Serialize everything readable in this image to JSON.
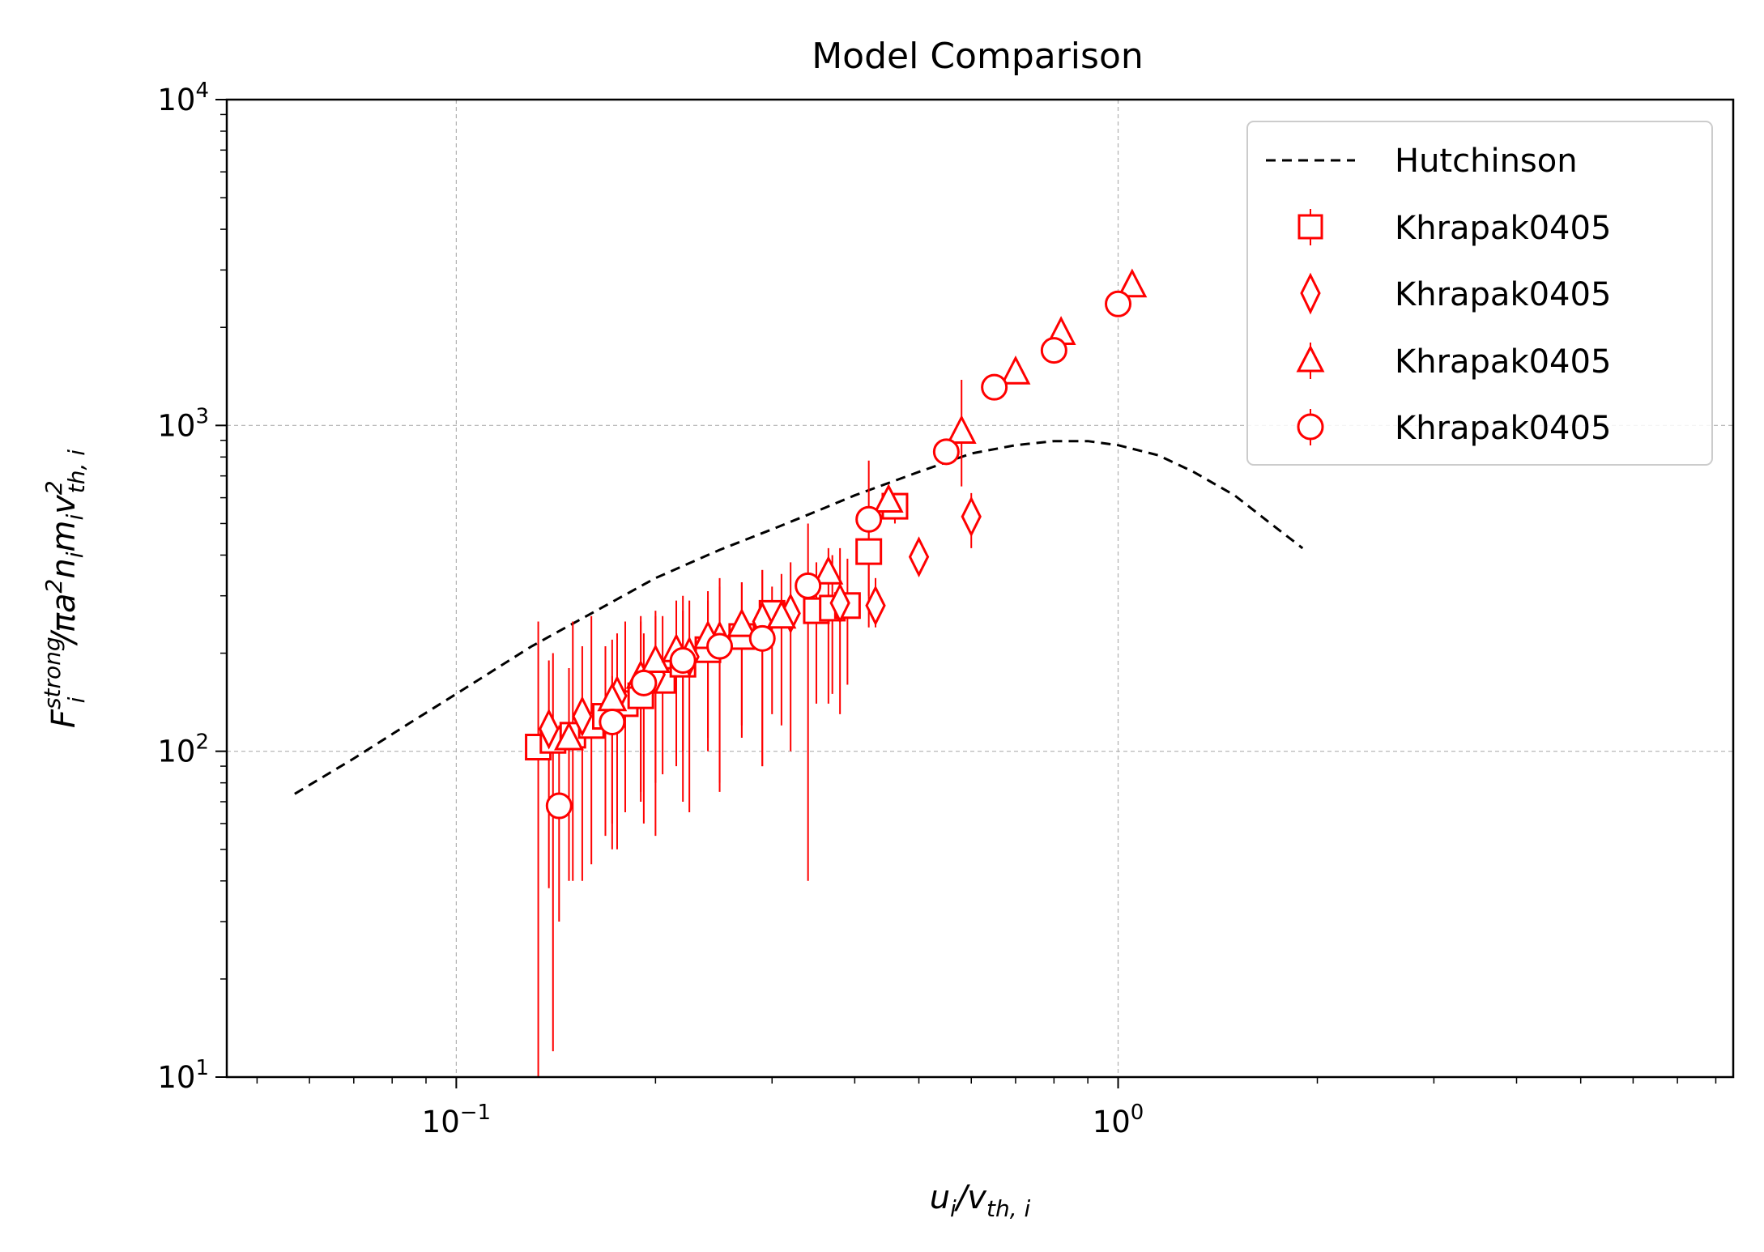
{
  "chart_data": {
    "type": "scatter",
    "title": "Model Comparison",
    "xlabel": "u_i/v_{th,i}",
    "ylabel": "F_i^{strong}/πa^2 n_i m_i v_{th,i}^2",
    "xscale": "log",
    "yscale": "log",
    "xlim": [
      0.045,
      8.5
    ],
    "ylim": [
      10,
      10000
    ],
    "grid": true,
    "legend_position": "top-right",
    "x_ticks": [
      {
        "value": 0.1,
        "base": "10",
        "exp": "−1"
      },
      {
        "value": 1,
        "base": "10",
        "exp": "0"
      }
    ],
    "y_ticks": [
      {
        "value": 10,
        "base": "10",
        "exp": "1"
      },
      {
        "value": 100,
        "base": "10",
        "exp": "2"
      },
      {
        "value": 1000,
        "base": "10",
        "exp": "3"
      },
      {
        "value": 10000,
        "base": "10",
        "exp": "4"
      }
    ],
    "series": [
      {
        "name": "Hutchinson",
        "kind": "line",
        "color": "#000000",
        "dash": true,
        "x": [
          0.057,
          0.07,
          0.085,
          0.1,
          0.13,
          0.16,
          0.2,
          0.25,
          0.3,
          0.35,
          0.4,
          0.5,
          0.6,
          0.7,
          0.8,
          0.9,
          1.0,
          1.15,
          1.3,
          1.5,
          1.7,
          1.9
        ],
        "y": [
          74,
          95,
          122,
          150,
          210,
          265,
          340,
          415,
          480,
          545,
          610,
          720,
          820,
          870,
          895,
          895,
          870,
          810,
          720,
          610,
          500,
          420
        ]
      },
      {
        "name": "Khrapak0405",
        "kind": "points",
        "marker": "square",
        "color": "#ff0000",
        "x": [
          0.133,
          0.14,
          0.15,
          0.16,
          0.168,
          0.18,
          0.19,
          0.205,
          0.22,
          0.24,
          0.27,
          0.3,
          0.35,
          0.37,
          0.39,
          0.42,
          0.46
        ],
        "y": [
          103,
          108,
          112,
          120,
          128,
          140,
          148,
          165,
          185,
          205,
          225,
          265,
          270,
          275,
          280,
          410,
          565
        ],
        "err_lo": [
          10,
          12,
          40,
          45,
          55,
          65,
          75,
          85,
          100,
          110,
          120,
          130,
          140,
          150,
          160,
          240,
          500
        ],
        "err_hi": [
          250,
          200,
          250,
          260,
          210,
          250,
          260,
          260,
          270,
          290,
          330,
          320,
          380,
          400,
          390,
          520,
          620
        ]
      },
      {
        "name": "Khrapak0405",
        "kind": "points",
        "marker": "diamond",
        "color": "#ff0000",
        "x": [
          0.138,
          0.155,
          0.175,
          0.2,
          0.225,
          0.25,
          0.29,
          0.32,
          0.38,
          0.43,
          0.5,
          0.6
        ],
        "y": [
          117,
          128,
          148,
          172,
          195,
          218,
          250,
          265,
          285,
          280,
          395,
          525
        ],
        "err_lo": [
          38,
          40,
          50,
          55,
          65,
          75,
          90,
          100,
          130,
          240,
          350,
          420
        ],
        "err_hi": [
          190,
          210,
          230,
          260,
          290,
          320,
          360,
          380,
          420,
          340,
          450,
          620
        ]
      },
      {
        "name": "Khrapak0405",
        "kind": "points",
        "marker": "triangle",
        "color": "#ff0000",
        "x": [
          0.148,
          0.172,
          0.19,
          0.2,
          0.215,
          0.24,
          0.27,
          0.31,
          0.365,
          0.45,
          0.58,
          0.7,
          0.82,
          1.05
        ],
        "y": [
          110,
          145,
          170,
          190,
          205,
          225,
          245,
          260,
          355,
          590,
          960,
          1460,
          1930,
          2700
        ],
        "err_lo": [
          40,
          60,
          70,
          80,
          90,
          100,
          110,
          120,
          140,
          560,
          650,
          1400,
          1850,
          2600
        ],
        "err_hi": [
          180,
          220,
          250,
          270,
          290,
          310,
          330,
          350,
          420,
          650,
          1380,
          1520,
          2000,
          2800
        ]
      },
      {
        "name": "Khrapak0405",
        "kind": "points",
        "marker": "circle",
        "color": "#ff0000",
        "x": [
          0.143,
          0.172,
          0.192,
          0.22,
          0.25,
          0.29,
          0.34,
          0.42,
          0.55,
          0.65,
          0.8,
          1.0
        ],
        "y": [
          68,
          123,
          162,
          190,
          210,
          222,
          322,
          515,
          830,
          1310,
          1700,
          2360
        ],
        "err_lo": [
          30,
          50,
          60,
          70,
          80,
          90,
          40,
          300,
          800,
          1260,
          1650,
          2300
        ],
        "err_hi": [
          120,
          170,
          230,
          300,
          340,
          360,
          500,
          780,
          870,
          1360,
          1750,
          2420
        ]
      }
    ]
  }
}
